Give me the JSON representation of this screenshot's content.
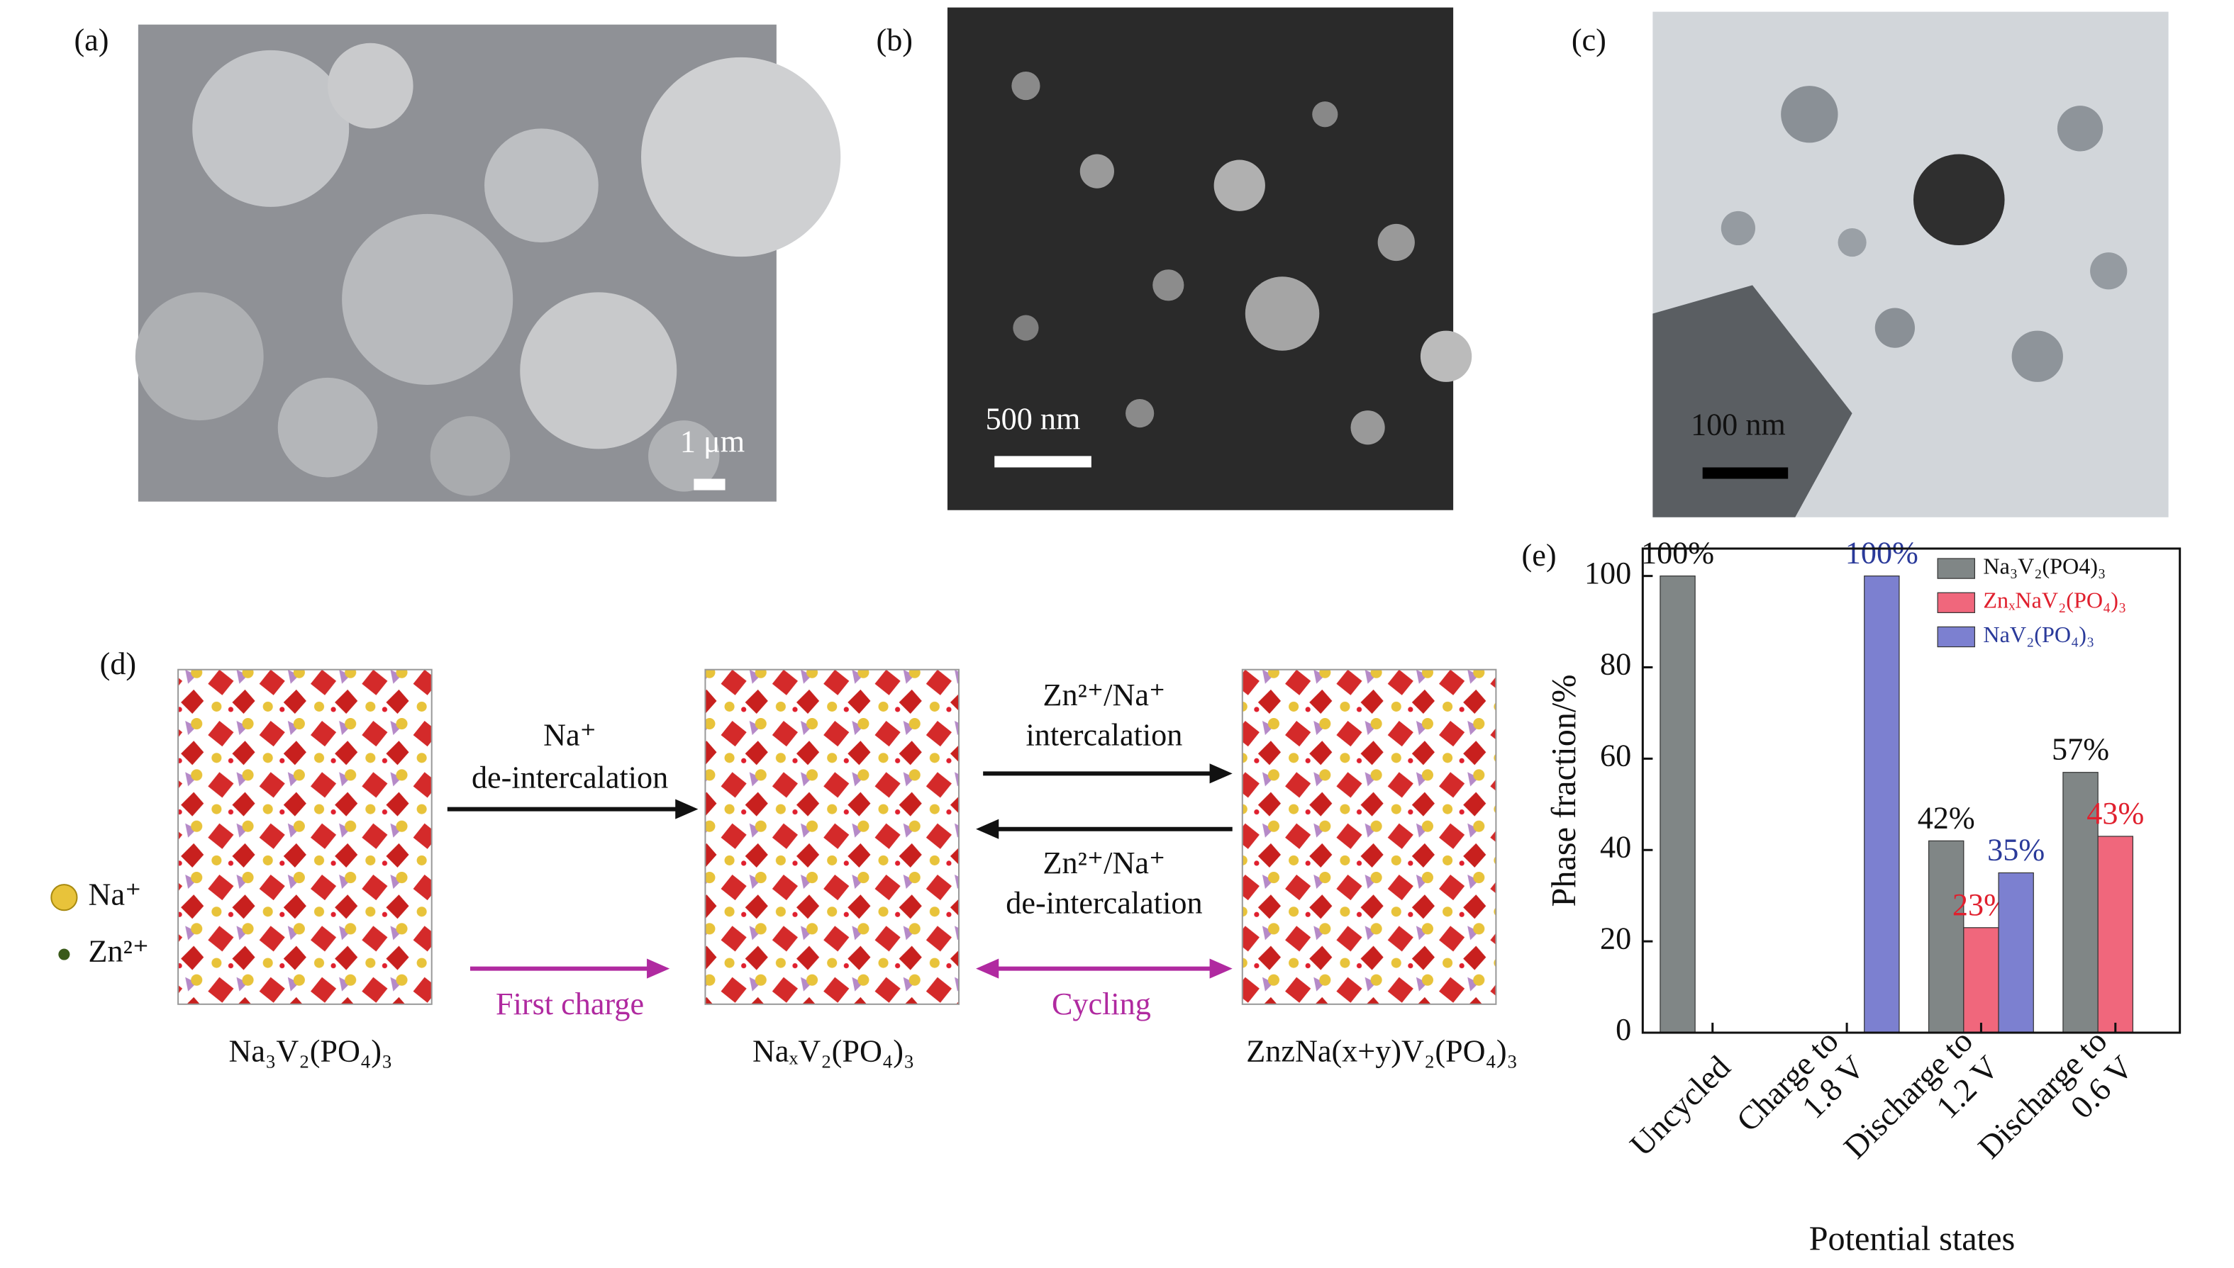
{
  "panels": {
    "a": {
      "label": "(a)",
      "scale_bar": "1 μm"
    },
    "b": {
      "label": "(b)",
      "scale_bar": "500 nm"
    },
    "c": {
      "label": "(c)",
      "scale_bar": "100 nm"
    },
    "d": {
      "label": "(d)",
      "legend": [
        "Na⁺",
        "Zn²⁺"
      ],
      "step1": [
        "Na⁺",
        "de-intercalation"
      ],
      "step2_forward": [
        "Zn²⁺/Na⁺",
        "intercalation"
      ],
      "step2_reverse": [
        "Zn²⁺/Na⁺",
        "de-intercalation"
      ],
      "first_charge": "First charge",
      "cycling": "Cycling",
      "structures": [
        "Na₃V₂(PO₄)₃",
        "NaₓV₂(PO₄)₃",
        "ZnzNa(x+y)V₂(PO₄)₃"
      ]
    }
  },
  "chart_data": {
    "type": "bar",
    "panel_label": "(e)",
    "y_label": "Phase fraction/%",
    "x_label": "Potential states",
    "categories": [
      [
        "Uncycled"
      ],
      [
        "Charge to",
        "1.8 V"
      ],
      [
        "Discharge to",
        "1.2 V"
      ],
      [
        "Discharge to",
        "0.6 V"
      ]
    ],
    "series": [
      {
        "name": "Na₃V₂(PO4)₃",
        "color": "#808686",
        "label_color": "#111111",
        "values": [
          100,
          null,
          42,
          57
        ],
        "value_labels": [
          "100%",
          null,
          "42%",
          "57%"
        ]
      },
      {
        "name": "ZnₓNaV₂(PO₄)₃",
        "color": "#f0677c",
        "label_color": "#e0202e",
        "values": [
          null,
          null,
          23,
          43
        ],
        "value_labels": [
          null,
          null,
          "23%",
          "43%"
        ]
      },
      {
        "name": "NaV₂(PO₄)₃",
        "color": "#7c80d0",
        "label_color": "#2a3a9a",
        "values": [
          null,
          100,
          35,
          null
        ],
        "value_labels": [
          null,
          "100%",
          "35%",
          null
        ]
      }
    ],
    "ylim": [
      0,
      106
    ],
    "yticks": [
      0,
      20,
      40,
      60,
      80,
      100
    ],
    "legend": "upper right"
  }
}
